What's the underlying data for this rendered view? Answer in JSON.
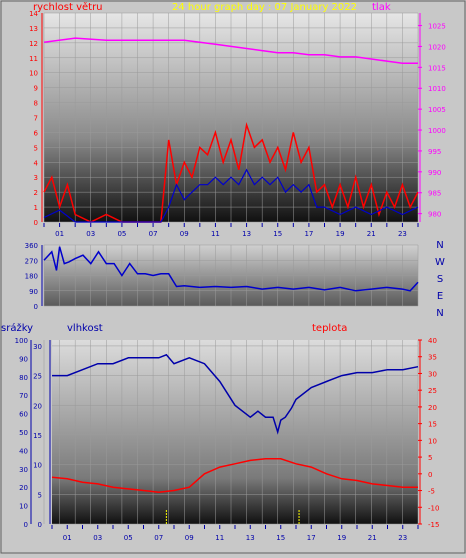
{
  "title": "24 hour graph day : 07 January 2022",
  "colors": {
    "bg": "#c8c8c8",
    "wind": "#ff0000",
    "wind_avg": "#0000cc",
    "pressure": "#ff00ff",
    "direction": "#0000cc",
    "humidity": "#0000aa",
    "temperature": "#ff0000",
    "rain": "#0000aa",
    "rain_marker": "#ffff00"
  },
  "chart_data": [
    {
      "type": "line",
      "label_left": "rychlost větru",
      "label_right": "tlak",
      "x_ticks": [
        "01",
        "03",
        "05",
        "07",
        "09",
        "11",
        "13",
        "15",
        "17",
        "19",
        "21",
        "23"
      ],
      "y_left_ticks": [
        "0",
        "1",
        "2",
        "3",
        "4",
        "5",
        "6",
        "7",
        "8",
        "9",
        "10",
        "11",
        "12",
        "13",
        "14"
      ],
      "y_right_ticks": [
        "980",
        "985",
        "990",
        "995",
        "1000",
        "1005",
        "1010",
        "1015",
        "1020",
        "1025"
      ],
      "ylim_left": [
        0,
        14
      ],
      "ylim_right": [
        978,
        1028
      ],
      "series": [
        {
          "name": "tlak",
          "axis": "right",
          "x": [
            0,
            2,
            4,
            6,
            8,
            9,
            10,
            11,
            12,
            13,
            14,
            15,
            16,
            17,
            18,
            19,
            20,
            21,
            22,
            23,
            24
          ],
          "values": [
            1021,
            1022,
            1021.5,
            1021.5,
            1021.5,
            1021.5,
            1021,
            1020.5,
            1020,
            1019.5,
            1019,
            1018.5,
            1018.5,
            1018,
            1018,
            1017.5,
            1017.5,
            1017,
            1016.5,
            1016,
            1016
          ]
        },
        {
          "name": "gust",
          "axis": "left",
          "x": [
            0,
            0.5,
            1,
            1.5,
            2,
            3,
            4,
            5,
            6,
            7,
            7.5,
            8,
            8.5,
            9,
            9.5,
            10,
            10.5,
            11,
            11.5,
            12,
            12.5,
            13,
            13.5,
            14,
            14.5,
            15,
            15.5,
            16,
            16.5,
            17,
            17.5,
            18,
            18.5,
            19,
            19.5,
            20,
            20.5,
            21,
            21.5,
            22,
            22.5,
            23,
            23.5,
            24
          ],
          "values": [
            2,
            3,
            1,
            2.5,
            0.5,
            0,
            0.5,
            0,
            0,
            0,
            0,
            5.5,
            2.5,
            4,
            3,
            5,
            4.5,
            6,
            4,
            5.5,
            3.5,
            6.5,
            5,
            5.5,
            4,
            5,
            3.5,
            6,
            4,
            5,
            2,
            2.5,
            1,
            2.5,
            1,
            3,
            1,
            2.5,
            0.5,
            2,
            1,
            2.5,
            1,
            2
          ]
        },
        {
          "name": "avg",
          "axis": "left",
          "x": [
            0,
            1,
            2,
            3,
            4,
            5,
            6,
            7,
            7.5,
            8,
            8.5,
            9,
            9.5,
            10,
            10.5,
            11,
            11.5,
            12,
            12.5,
            13,
            13.5,
            14,
            14.5,
            15,
            15.5,
            16,
            16.5,
            17,
            17.5,
            18,
            19,
            20,
            21,
            22,
            23,
            24
          ],
          "values": [
            0.3,
            0.8,
            0,
            0,
            0,
            0,
            0,
            0,
            0,
            1,
            2.5,
            1.5,
            2,
            2.5,
            2.5,
            3,
            2.5,
            3,
            2.5,
            3.5,
            2.5,
            3,
            2.5,
            3,
            2,
            2.5,
            2,
            2.5,
            1,
            1,
            0.5,
            1,
            0.5,
            1,
            0.5,
            1
          ]
        }
      ]
    },
    {
      "type": "line",
      "label_right": "N W S E N",
      "y_left_ticks": [
        "0",
        "90",
        "180",
        "270",
        "360"
      ],
      "ylim": [
        0,
        360
      ],
      "series": [
        {
          "name": "smer",
          "x": [
            0,
            0.5,
            0.8,
            1,
            1.3,
            1.6,
            2,
            2.5,
            3,
            3.5,
            4,
            4.5,
            5,
            5.5,
            6,
            6.5,
            7,
            7.5,
            8,
            8.5,
            9,
            10,
            11,
            12,
            13,
            14,
            15,
            16,
            17,
            18,
            19,
            20,
            21,
            22,
            23,
            23.5,
            24
          ],
          "values": [
            270,
            320,
            210,
            350,
            250,
            260,
            280,
            300,
            250,
            320,
            250,
            250,
            180,
            250,
            190,
            190,
            180,
            190,
            190,
            115,
            120,
            110,
            115,
            110,
            115,
            100,
            110,
            100,
            110,
            95,
            110,
            90,
            100,
            110,
            100,
            90,
            140
          ]
        }
      ]
    },
    {
      "type": "line",
      "label_left": "srážky",
      "label_mid": "vlhkost",
      "label_right": "teplota",
      "x_ticks": [
        "01",
        "03",
        "05",
        "07",
        "09",
        "11",
        "13",
        "15",
        "17",
        "19",
        "21",
        "23"
      ],
      "y_rain_ticks": [
        "0",
        "10",
        "20",
        "30",
        "40",
        "50",
        "60",
        "70",
        "80",
        "90",
        "100"
      ],
      "y_hum_ticks": [
        "0",
        "5",
        "10",
        "15",
        "20",
        "25",
        "30"
      ],
      "y_temp_ticks": [
        "-15",
        "-10",
        "-5",
        "0",
        "5",
        "10",
        "15",
        "20",
        "25",
        "30",
        "35",
        "40"
      ],
      "ylim_hum": [
        0,
        31
      ],
      "ylim_temp": [
        -15,
        40
      ],
      "series": [
        {
          "name": "vlhkost",
          "x": [
            0,
            1,
            2,
            3,
            4,
            5,
            6,
            7,
            7.5,
            8,
            9,
            10,
            11,
            12,
            13,
            13.5,
            14,
            14.5,
            14.8,
            15,
            15.3,
            15.7,
            16,
            17,
            18,
            19,
            20,
            21,
            22,
            23,
            24
          ],
          "values": [
            25,
            25,
            26,
            27,
            27,
            28,
            28,
            28,
            28.5,
            27,
            28,
            27,
            24,
            20,
            18,
            19,
            18,
            18,
            15.5,
            17.5,
            18,
            19.5,
            21,
            23,
            24,
            25,
            25.5,
            25.5,
            26,
            26,
            26.5
          ]
        },
        {
          "name": "teplota",
          "x": [
            0,
            1,
            2,
            3,
            4,
            5,
            6,
            7,
            8,
            9,
            10,
            11,
            12,
            13,
            14,
            15,
            16,
            17,
            18,
            19,
            20,
            21,
            22,
            23,
            24
          ],
          "values": [
            -1,
            -1.5,
            -2.5,
            -3,
            -4,
            -4.5,
            -5,
            -5.5,
            -5,
            -4,
            0,
            2,
            3,
            4,
            4.5,
            4.5,
            3,
            2,
            0,
            -1.5,
            -2,
            -3,
            -3.5,
            -4,
            -4
          ]
        },
        {
          "name": "srážky",
          "x": [
            7.5,
            16.2
          ],
          "values": [
            0.5,
            0.5
          ]
        }
      ]
    }
  ]
}
